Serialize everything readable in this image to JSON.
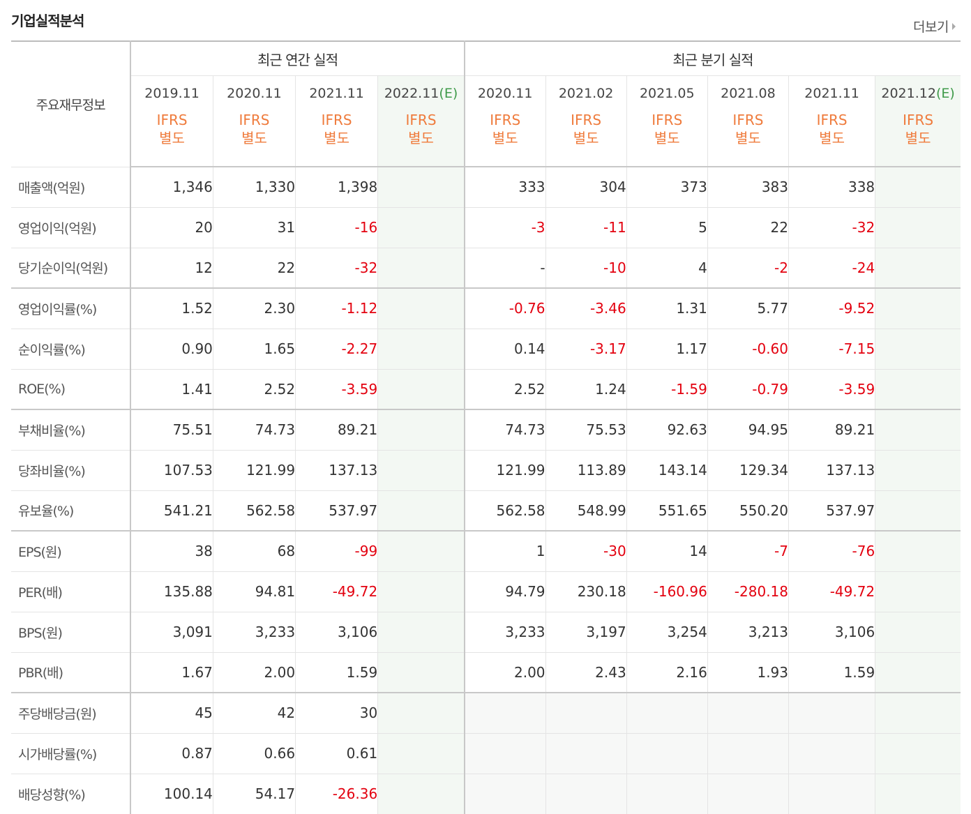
{
  "section_title": "기업실적분석",
  "more_label": "더보기",
  "table": {
    "row_header": "주요재무정보",
    "annual_group": "최근 연간 실적",
    "quarter_group": "최근 분기 실적",
    "annual_periods": [
      "2019.11",
      "2020.11",
      "2021.11",
      "2022.11"
    ],
    "quarter_periods": [
      "2020.11",
      "2021.02",
      "2021.05",
      "2021.08",
      "2021.11",
      "2021.12"
    ],
    "estimate_mark": "(E)",
    "basis_line1": "IFRS",
    "basis_line2": "별도",
    "rows": [
      {
        "label": "매출액(억원)",
        "annual": [
          "1,346",
          "1,330",
          "1,398",
          ""
        ],
        "quarter": [
          "333",
          "304",
          "373",
          "383",
          "338",
          ""
        ]
      },
      {
        "label": "영업이익(억원)",
        "annual": [
          "20",
          "31",
          "-16",
          ""
        ],
        "quarter": [
          "-3",
          "-11",
          "5",
          "22",
          "-32",
          ""
        ]
      },
      {
        "label": "당기순이익(억원)",
        "annual": [
          "12",
          "22",
          "-32",
          ""
        ],
        "quarter": [
          "-",
          "-10",
          "4",
          "-2",
          "-24",
          ""
        ]
      },
      {
        "label": "영업이익률(%)",
        "annual": [
          "1.52",
          "2.30",
          "-1.12",
          ""
        ],
        "quarter": [
          "-0.76",
          "-3.46",
          "1.31",
          "5.77",
          "-9.52",
          ""
        ]
      },
      {
        "label": "순이익률(%)",
        "annual": [
          "0.90",
          "1.65",
          "-2.27",
          ""
        ],
        "quarter": [
          "0.14",
          "-3.17",
          "1.17",
          "-0.60",
          "-7.15",
          ""
        ]
      },
      {
        "label": "ROE(%)",
        "annual": [
          "1.41",
          "2.52",
          "-3.59",
          ""
        ],
        "quarter": [
          "2.52",
          "1.24",
          "-1.59",
          "-0.79",
          "-3.59",
          ""
        ]
      },
      {
        "label": "부채비율(%)",
        "annual": [
          "75.51",
          "74.73",
          "89.21",
          ""
        ],
        "quarter": [
          "74.73",
          "75.53",
          "92.63",
          "94.95",
          "89.21",
          ""
        ]
      },
      {
        "label": "당좌비율(%)",
        "annual": [
          "107.53",
          "121.99",
          "137.13",
          ""
        ],
        "quarter": [
          "121.99",
          "113.89",
          "143.14",
          "129.34",
          "137.13",
          ""
        ]
      },
      {
        "label": "유보율(%)",
        "annual": [
          "541.21",
          "562.58",
          "537.97",
          ""
        ],
        "quarter": [
          "562.58",
          "548.99",
          "551.65",
          "550.20",
          "537.97",
          ""
        ]
      },
      {
        "label": "EPS(원)",
        "annual": [
          "38",
          "68",
          "-99",
          ""
        ],
        "quarter": [
          "1",
          "-30",
          "14",
          "-7",
          "-76",
          ""
        ]
      },
      {
        "label": "PER(배)",
        "annual": [
          "135.88",
          "94.81",
          "-49.72",
          ""
        ],
        "quarter": [
          "94.79",
          "230.18",
          "-160.96",
          "-280.18",
          "-49.72",
          ""
        ]
      },
      {
        "label": "BPS(원)",
        "annual": [
          "3,091",
          "3,233",
          "3,106",
          ""
        ],
        "quarter": [
          "3,233",
          "3,197",
          "3,254",
          "3,213",
          "3,106",
          ""
        ]
      },
      {
        "label": "PBR(배)",
        "annual": [
          "1.67",
          "2.00",
          "1.59",
          ""
        ],
        "quarter": [
          "2.00",
          "2.43",
          "2.16",
          "1.93",
          "1.59",
          ""
        ]
      },
      {
        "label": "주당배당금(원)",
        "annual": [
          "45",
          "42",
          "30",
          ""
        ],
        "quarter": [
          "",
          "",
          "",
          "",
          "",
          ""
        ]
      },
      {
        "label": "시가배당률(%)",
        "annual": [
          "0.87",
          "0.66",
          "0.61",
          ""
        ],
        "quarter": [
          "",
          "",
          "",
          "",
          "",
          ""
        ]
      },
      {
        "label": "배당성향(%)",
        "annual": [
          "100.14",
          "54.17",
          "-26.36",
          ""
        ],
        "quarter": [
          "",
          "",
          "",
          "",
          "",
          ""
        ]
      }
    ],
    "group_end_rows": [
      2,
      5,
      8,
      12
    ],
    "no_quarter_rows": [
      13,
      14,
      15
    ]
  },
  "colors": {
    "negative": "#e3000f",
    "estimate": "#3f9a4a",
    "ifrs": "#ef7b3c"
  }
}
